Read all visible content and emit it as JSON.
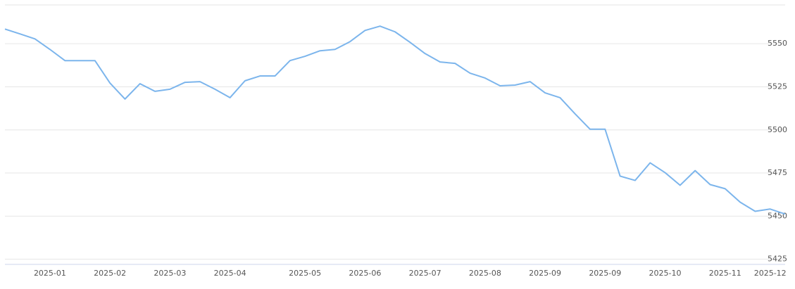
{
  "chart_data": {
    "type": "line",
    "categories": [
      null,
      null,
      null,
      "2025-01",
      null,
      null,
      null,
      "2025-02",
      null,
      null,
      null,
      "2025-03",
      null,
      null,
      null,
      "2025-04",
      null,
      null,
      null,
      null,
      "2025-05",
      null,
      null,
      null,
      "2025-06",
      null,
      null,
      null,
      "2025-07",
      null,
      null,
      null,
      "2025-08",
      null,
      null,
      null,
      "2025-09",
      null,
      null,
      null,
      "2025-09",
      null,
      null,
      null,
      "2025-10",
      null,
      null,
      null,
      "2025-11",
      null,
      null,
      "2025-12",
      null
    ],
    "series": [
      {
        "color": "#7cb5ec",
        "values": [
          5558.5,
          5555.7,
          5552.8,
          5546.7,
          5540.2,
          5540.2,
          5540.2,
          5527.2,
          5517.9,
          5526.8,
          5522.4,
          5523.6,
          5527.6,
          5528,
          5523.6,
          5518.7,
          5528.5,
          5531.3,
          5531.3,
          5540.2,
          5542.7,
          5545.9,
          5546.7,
          5551.2,
          5557.7,
          5560.2,
          5556.9,
          5550.8,
          5544.3,
          5539.4,
          5538.6,
          5532.9,
          5530.1,
          5525.6,
          5526,
          5528,
          5521.5,
          5518.7,
          5509.3,
          5500.4,
          5500.4,
          5473.2,
          5470.7,
          5480.9,
          5475.2,
          5467.9,
          5476.4,
          5468.3,
          5465.9,
          5458.1,
          5452.8,
          5454.1,
          5451.2
        ]
      }
    ],
    "ylim": [
      5422,
      5572.5
    ],
    "yticks": [
      5425,
      5450,
      5475,
      5500,
      5525,
      5550
    ],
    "grid": true
  }
}
